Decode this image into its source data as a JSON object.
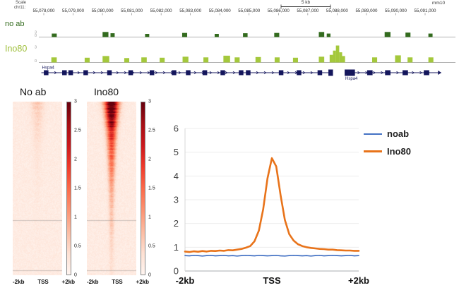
{
  "chart_data": [
    {
      "id": "genome_browser",
      "type": "area",
      "scale_label": "Scale",
      "chrom_label": "chr11:",
      "scalebar_label": "5 kb",
      "assembly_label": "mm10",
      "coordinate_labels": [
        "55,078,000",
        "55,079,000",
        "55,080,000",
        "55,081,000",
        "55,082,000",
        "55,083,000",
        "55,084,000",
        "55,085,000",
        "55,086,000",
        "55,087,000",
        "55,088,000",
        "55,089,000",
        "55,090,000",
        "55,091,000"
      ],
      "tracks": [
        {
          "label": "no ab",
          "color": "#336b1e",
          "scale_max": "3",
          "scale_min": "0",
          "peaks": [
            [
              0.031,
              0.012,
              0.55
            ],
            [
              0.153,
              0.014,
              0.8
            ],
            [
              0.172,
              0.01,
              0.6
            ],
            [
              0.255,
              0.01,
              0.5
            ],
            [
              0.344,
              0.012,
              0.65
            ],
            [
              0.422,
              0.01,
              0.5
            ],
            [
              0.49,
              0.011,
              0.6
            ],
            [
              0.565,
              0.012,
              0.65
            ],
            [
              0.672,
              0.013,
              0.8
            ],
            [
              0.691,
              0.009,
              0.55
            ],
            [
              0.83,
              0.014,
              0.8
            ],
            [
              0.88,
              0.012,
              0.7
            ],
            [
              0.935,
              0.01,
              0.55
            ]
          ]
        },
        {
          "label": "Ino80",
          "color": "#a4c83c",
          "scale_max": "3",
          "scale_min": "0",
          "peaks": [
            [
              0.03,
              0.013,
              0.3
            ],
            [
              0.11,
              0.012,
              0.28
            ],
            [
              0.153,
              0.016,
              0.38
            ],
            [
              0.205,
              0.012,
              0.26
            ],
            [
              0.246,
              0.013,
              0.3
            ],
            [
              0.29,
              0.012,
              0.28
            ],
            [
              0.345,
              0.014,
              0.34
            ],
            [
              0.395,
              0.012,
              0.3
            ],
            [
              0.443,
              0.016,
              0.4
            ],
            [
              0.47,
              0.012,
              0.3
            ],
            [
              0.52,
              0.013,
              0.32
            ],
            [
              0.566,
              0.012,
              0.3
            ],
            [
              0.61,
              0.012,
              0.28
            ],
            [
              0.672,
              0.013,
              0.34
            ],
            [
              0.698,
              0.008,
              0.45
            ],
            [
              0.706,
              0.007,
              0.7
            ],
            [
              0.713,
              0.008,
              1.0
            ],
            [
              0.721,
              0.007,
              0.6
            ],
            [
              0.728,
              0.007,
              0.38
            ],
            [
              0.8,
              0.012,
              0.3
            ],
            [
              0.855,
              0.014,
              0.42
            ],
            [
              0.885,
              0.012,
              0.3
            ],
            [
              0.935,
              0.012,
              0.3
            ]
          ]
        }
      ],
      "gene_track": {
        "color": "#14165c",
        "genes": [
          {
            "label": "Hspa4",
            "start": 0.006,
            "end": 0.705,
            "exons": [
              0.012,
              0.056,
              0.071,
              0.107,
              0.164,
              0.215,
              0.266,
              0.319,
              0.353,
              0.393,
              0.436,
              0.48,
              0.497,
              0.576,
              0.619,
              0.669,
              0.695
            ],
            "exon_width": 0.011,
            "label_pos": "above-start"
          },
          {
            "label": "Hspa4",
            "start": 0.734,
            "end": 0.958,
            "exons": [
              0.734,
              0.788,
              0.831,
              0.873,
              0.924
            ],
            "exon_width": 0.013,
            "label_pos": "below-start"
          }
        ]
      }
    },
    {
      "id": "heatmap_noab",
      "type": "heatmap",
      "title": "No ab",
      "x_ticks": [
        "-2kb",
        "TSS",
        "+2kb"
      ],
      "colorbar_ticks": [
        "3",
        "2.5",
        "2",
        "1.5",
        "1",
        "0.5",
        "0"
      ],
      "value_range": [
        0,
        3
      ],
      "center_peak_amplitude": 0.45,
      "row_decay": 4,
      "background_level": 0.17,
      "stripe_rows": [
        0.683,
        0.972
      ],
      "seed": 7
    },
    {
      "id": "heatmap_ino80",
      "type": "heatmap",
      "title": "Ino80",
      "x_ticks": [
        "-2kb",
        "TSS",
        "+2kb"
      ],
      "colorbar_ticks": [
        "3",
        "2.5",
        "2",
        "1.5",
        "1",
        "0.5",
        "0"
      ],
      "value_range": [
        0,
        3
      ],
      "center_peak_amplitude": 3.4,
      "row_decay": 3,
      "background_level": 0.17,
      "stripe_rows": [
        0.683,
        0.972
      ],
      "seed": 13
    },
    {
      "id": "tss_profile",
      "type": "line",
      "x_unit": "bp from TSS",
      "x": [
        -2000,
        -1900,
        -1800,
        -1700,
        -1600,
        -1500,
        -1400,
        -1300,
        -1200,
        -1100,
        -1000,
        -900,
        -800,
        -700,
        -600,
        -500,
        -400,
        -300,
        -200,
        -100,
        0,
        100,
        200,
        300,
        400,
        500,
        600,
        700,
        800,
        900,
        1000,
        1100,
        1200,
        1300,
        1400,
        1500,
        1600,
        1700,
        1800,
        1900,
        2000
      ],
      "series": [
        {
          "name": "noab",
          "color": "#4472c4",
          "values": [
            0.65,
            0.64,
            0.66,
            0.65,
            0.63,
            0.65,
            0.66,
            0.64,
            0.65,
            0.66,
            0.64,
            0.65,
            0.63,
            0.65,
            0.66,
            0.65,
            0.64,
            0.66,
            0.65,
            0.64,
            0.65,
            0.66,
            0.64,
            0.63,
            0.65,
            0.66,
            0.65,
            0.64,
            0.65,
            0.63,
            0.65,
            0.66,
            0.64,
            0.65,
            0.66,
            0.65,
            0.64,
            0.65,
            0.66,
            0.64,
            0.65
          ]
        },
        {
          "name": "Ino80",
          "color": "#e8731a",
          "values": [
            0.82,
            0.8,
            0.83,
            0.81,
            0.84,
            0.82,
            0.85,
            0.84,
            0.86,
            0.85,
            0.88,
            0.87,
            0.9,
            0.93,
            0.98,
            1.05,
            1.25,
            1.7,
            2.6,
            3.9,
            4.75,
            4.4,
            3.2,
            2.15,
            1.55,
            1.28,
            1.13,
            1.05,
            1.0,
            0.97,
            0.95,
            0.93,
            0.92,
            0.9,
            0.9,
            0.88,
            0.87,
            0.86,
            0.86,
            0.85,
            0.85
          ]
        }
      ],
      "ylim": [
        0,
        6
      ],
      "y_ticks": [
        "0",
        "1",
        "2",
        "3",
        "4",
        "5",
        "6"
      ],
      "x_labels": [
        "-2kb",
        "TSS",
        "+2kb"
      ],
      "legend_position": "right"
    }
  ]
}
